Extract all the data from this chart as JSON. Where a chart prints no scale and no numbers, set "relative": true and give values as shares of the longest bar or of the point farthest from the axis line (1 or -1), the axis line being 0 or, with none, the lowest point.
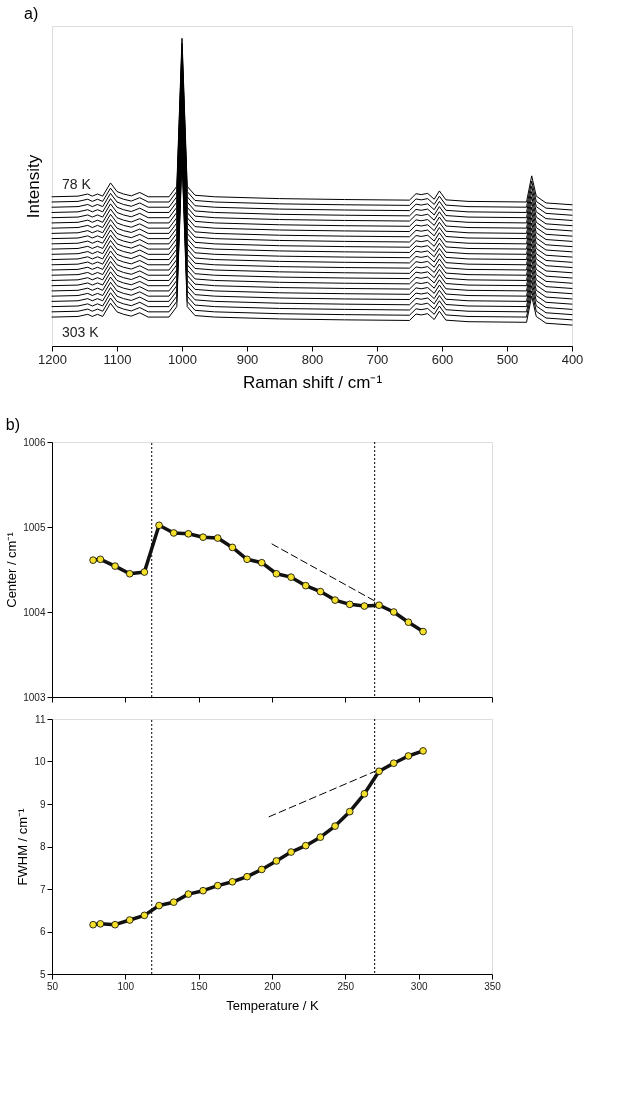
{
  "chart_data": [
    {
      "type": "line",
      "title": "a)",
      "xlabel": "Raman shift / cm⁻¹",
      "ylabel": "Intensity",
      "relative": true,
      "xlim": [
        1200,
        400
      ],
      "xticks": [
        1200,
        1100,
        1000,
        900,
        800,
        700,
        600,
        500,
        400
      ],
      "x": [
        1200,
        1160,
        1145,
        1138,
        1130,
        1122,
        1110,
        1100,
        1090,
        1078,
        1065,
        1052,
        1020,
        1008,
        1000,
        992,
        980,
        950,
        850,
        750,
        650,
        640,
        632,
        622,
        612,
        604,
        594,
        560,
        470,
        462,
        455,
        440,
        400
      ],
      "series": [
        {
          "name": "78 K",
          "color": "#000000",
          "values": [
            0.485,
            0.487,
            0.494,
            0.487,
            0.494,
            0.487,
            0.53,
            0.502,
            0.494,
            0.488,
            0.499,
            0.485,
            0.485,
            0.519,
            1.0,
            0.519,
            0.49,
            0.485,
            0.479,
            0.476,
            0.474,
            0.495,
            0.492,
            0.496,
            0.477,
            0.504,
            0.475,
            0.47,
            0.468,
            0.553,
            0.487,
            0.465,
            0.459
          ]
        },
        {
          "color": "#000000",
          "values": [
            0.468,
            0.47,
            0.477,
            0.47,
            0.477,
            0.47,
            0.513,
            0.485,
            0.477,
            0.471,
            0.482,
            0.468,
            0.468,
            0.502,
            0.983,
            0.502,
            0.473,
            0.468,
            0.462,
            0.459,
            0.457,
            0.478,
            0.475,
            0.479,
            0.46,
            0.487,
            0.458,
            0.453,
            0.451,
            0.536,
            0.47,
            0.448,
            0.442
          ]
        },
        {
          "color": "#000000",
          "values": [
            0.451,
            0.453,
            0.46,
            0.453,
            0.46,
            0.453,
            0.496,
            0.468,
            0.46,
            0.454,
            0.465,
            0.451,
            0.451,
            0.485,
            0.966,
            0.485,
            0.456,
            0.451,
            0.445,
            0.442,
            0.44,
            0.461,
            0.458,
            0.462,
            0.443,
            0.47,
            0.441,
            0.436,
            0.434,
            0.519,
            0.453,
            0.431,
            0.425
          ]
        },
        {
          "color": "#000000",
          "values": [
            0.434,
            0.436,
            0.443,
            0.436,
            0.443,
            0.436,
            0.479,
            0.451,
            0.443,
            0.437,
            0.448,
            0.434,
            0.434,
            0.468,
            0.949,
            0.468,
            0.439,
            0.434,
            0.428,
            0.425,
            0.423,
            0.444,
            0.441,
            0.445,
            0.426,
            0.453,
            0.424,
            0.419,
            0.417,
            0.502,
            0.436,
            0.414,
            0.408
          ]
        },
        {
          "color": "#000000",
          "values": [
            0.417,
            0.419,
            0.426,
            0.419,
            0.426,
            0.419,
            0.462,
            0.434,
            0.426,
            0.42,
            0.431,
            0.417,
            0.417,
            0.451,
            0.932,
            0.451,
            0.422,
            0.417,
            0.411,
            0.408,
            0.406,
            0.427,
            0.424,
            0.428,
            0.409,
            0.436,
            0.407,
            0.402,
            0.4,
            0.485,
            0.419,
            0.397,
            0.391
          ]
        },
        {
          "color": "#000000",
          "values": [
            0.4,
            0.402,
            0.409,
            0.402,
            0.409,
            0.402,
            0.445,
            0.417,
            0.409,
            0.403,
            0.414,
            0.4,
            0.4,
            0.434,
            0.915,
            0.434,
            0.405,
            0.4,
            0.394,
            0.391,
            0.389,
            0.41,
            0.407,
            0.411,
            0.392,
            0.419,
            0.39,
            0.385,
            0.383,
            0.468,
            0.402,
            0.38,
            0.374
          ]
        },
        {
          "color": "#000000",
          "values": [
            0.383,
            0.385,
            0.392,
            0.385,
            0.392,
            0.385,
            0.428,
            0.4,
            0.392,
            0.386,
            0.397,
            0.383,
            0.383,
            0.417,
            0.898,
            0.417,
            0.388,
            0.383,
            0.377,
            0.374,
            0.372,
            0.393,
            0.39,
            0.394,
            0.375,
            0.402,
            0.373,
            0.368,
            0.366,
            0.451,
            0.385,
            0.363,
            0.357
          ]
        },
        {
          "color": "#000000",
          "values": [
            0.366,
            0.368,
            0.375,
            0.368,
            0.375,
            0.368,
            0.411,
            0.383,
            0.375,
            0.369,
            0.38,
            0.366,
            0.366,
            0.4,
            0.881,
            0.4,
            0.371,
            0.366,
            0.36,
            0.357,
            0.355,
            0.376,
            0.373,
            0.377,
            0.358,
            0.385,
            0.356,
            0.351,
            0.349,
            0.434,
            0.368,
            0.346,
            0.34
          ]
        },
        {
          "color": "#000000",
          "values": [
            0.349,
            0.351,
            0.358,
            0.351,
            0.358,
            0.351,
            0.394,
            0.366,
            0.358,
            0.352,
            0.363,
            0.349,
            0.349,
            0.383,
            0.864,
            0.383,
            0.354,
            0.349,
            0.343,
            0.34,
            0.338,
            0.359,
            0.356,
            0.36,
            0.341,
            0.368,
            0.339,
            0.334,
            0.332,
            0.417,
            0.351,
            0.329,
            0.323
          ]
        },
        {
          "color": "#000000",
          "values": [
            0.332,
            0.334,
            0.341,
            0.334,
            0.341,
            0.334,
            0.377,
            0.349,
            0.341,
            0.335,
            0.346,
            0.332,
            0.332,
            0.366,
            0.847,
            0.366,
            0.337,
            0.332,
            0.326,
            0.323,
            0.321,
            0.342,
            0.339,
            0.343,
            0.324,
            0.351,
            0.322,
            0.317,
            0.315,
            0.4,
            0.334,
            0.312,
            0.306
          ]
        },
        {
          "color": "#000000",
          "values": [
            0.315,
            0.317,
            0.324,
            0.317,
            0.324,
            0.317,
            0.36,
            0.332,
            0.324,
            0.318,
            0.329,
            0.315,
            0.315,
            0.349,
            0.83,
            0.349,
            0.32,
            0.315,
            0.309,
            0.306,
            0.304,
            0.325,
            0.322,
            0.326,
            0.307,
            0.334,
            0.305,
            0.3,
            0.298,
            0.383,
            0.317,
            0.295,
            0.289
          ]
        },
        {
          "color": "#000000",
          "values": [
            0.298,
            0.3,
            0.307,
            0.3,
            0.307,
            0.3,
            0.343,
            0.315,
            0.307,
            0.301,
            0.312,
            0.298,
            0.298,
            0.332,
            0.813,
            0.332,
            0.303,
            0.298,
            0.292,
            0.289,
            0.287,
            0.308,
            0.305,
            0.309,
            0.29,
            0.317,
            0.288,
            0.283,
            0.281,
            0.366,
            0.3,
            0.278,
            0.272
          ]
        },
        {
          "color": "#000000",
          "values": [
            0.281,
            0.283,
            0.29,
            0.283,
            0.29,
            0.283,
            0.326,
            0.298,
            0.29,
            0.284,
            0.295,
            0.281,
            0.281,
            0.315,
            0.796,
            0.315,
            0.286,
            0.281,
            0.275,
            0.272,
            0.27,
            0.291,
            0.288,
            0.292,
            0.273,
            0.3,
            0.271,
            0.266,
            0.264,
            0.349,
            0.283,
            0.261,
            0.255
          ]
        },
        {
          "color": "#000000",
          "values": [
            0.264,
            0.266,
            0.273,
            0.266,
            0.273,
            0.266,
            0.309,
            0.281,
            0.273,
            0.267,
            0.278,
            0.264,
            0.264,
            0.298,
            0.779,
            0.298,
            0.269,
            0.264,
            0.258,
            0.255,
            0.253,
            0.274,
            0.271,
            0.275,
            0.256,
            0.283,
            0.254,
            0.249,
            0.247,
            0.332,
            0.266,
            0.244,
            0.238
          ]
        },
        {
          "color": "#000000",
          "values": [
            0.247,
            0.249,
            0.256,
            0.249,
            0.256,
            0.249,
            0.292,
            0.264,
            0.256,
            0.25,
            0.261,
            0.247,
            0.247,
            0.281,
            0.762,
            0.281,
            0.252,
            0.247,
            0.241,
            0.238,
            0.236,
            0.257,
            0.254,
            0.258,
            0.239,
            0.266,
            0.237,
            0.232,
            0.23,
            0.315,
            0.249,
            0.227,
            0.221
          ]
        },
        {
          "color": "#000000",
          "values": [
            0.23,
            0.232,
            0.239,
            0.232,
            0.239,
            0.232,
            0.275,
            0.247,
            0.239,
            0.233,
            0.244,
            0.23,
            0.23,
            0.264,
            0.745,
            0.264,
            0.235,
            0.23,
            0.224,
            0.221,
            0.219,
            0.24,
            0.237,
            0.241,
            0.222,
            0.249,
            0.22,
            0.215,
            0.213,
            0.298,
            0.232,
            0.21,
            0.204
          ]
        },
        {
          "color": "#000000",
          "values": [
            0.213,
            0.215,
            0.222,
            0.215,
            0.222,
            0.215,
            0.258,
            0.23,
            0.222,
            0.216,
            0.227,
            0.213,
            0.213,
            0.247,
            0.728,
            0.247,
            0.218,
            0.213,
            0.207,
            0.204,
            0.202,
            0.223,
            0.22,
            0.224,
            0.205,
            0.232,
            0.203,
            0.198,
            0.196,
            0.281,
            0.215,
            0.193,
            0.187
          ]
        },
        {
          "color": "#000000",
          "values": [
            0.196,
            0.198,
            0.205,
            0.198,
            0.205,
            0.198,
            0.241,
            0.213,
            0.205,
            0.199,
            0.21,
            0.196,
            0.196,
            0.23,
            0.711,
            0.23,
            0.201,
            0.196,
            0.19,
            0.187,
            0.185,
            0.206,
            0.203,
            0.207,
            0.188,
            0.215,
            0.186,
            0.181,
            0.179,
            0.264,
            0.198,
            0.176,
            0.17
          ]
        },
        {
          "color": "#000000",
          "values": [
            0.179,
            0.181,
            0.188,
            0.181,
            0.188,
            0.181,
            0.224,
            0.196,
            0.188,
            0.182,
            0.193,
            0.179,
            0.179,
            0.213,
            0.694,
            0.213,
            0.184,
            0.179,
            0.173,
            0.17,
            0.168,
            0.189,
            0.186,
            0.19,
            0.171,
            0.198,
            0.169,
            0.164,
            0.162,
            0.247,
            0.181,
            0.159,
            0.153
          ]
        },
        {
          "color": "#000000",
          "values": [
            0.162,
            0.164,
            0.171,
            0.164,
            0.171,
            0.164,
            0.207,
            0.179,
            0.171,
            0.165,
            0.176,
            0.162,
            0.162,
            0.196,
            0.677,
            0.196,
            0.167,
            0.162,
            0.156,
            0.153,
            0.151,
            0.172,
            0.169,
            0.173,
            0.154,
            0.181,
            0.152,
            0.147,
            0.145,
            0.23,
            0.164,
            0.142,
            0.136
          ]
        },
        {
          "color": "#000000",
          "values": [
            0.145,
            0.147,
            0.154,
            0.147,
            0.154,
            0.147,
            0.19,
            0.162,
            0.154,
            0.148,
            0.159,
            0.145,
            0.145,
            0.179,
            0.66,
            0.179,
            0.15,
            0.145,
            0.139,
            0.136,
            0.134,
            0.155,
            0.152,
            0.156,
            0.137,
            0.164,
            0.135,
            0.13,
            0.128,
            0.213,
            0.147,
            0.125,
            0.119
          ]
        },
        {
          "color": "#000000",
          "values": [
            0.128,
            0.13,
            0.137,
            0.13,
            0.137,
            0.13,
            0.173,
            0.145,
            0.137,
            0.131,
            0.142,
            0.128,
            0.128,
            0.162,
            0.643,
            0.162,
            0.133,
            0.128,
            0.122,
            0.119,
            0.117,
            0.138,
            0.135,
            0.139,
            0.12,
            0.147,
            0.118,
            0.113,
            0.111,
            0.196,
            0.13,
            0.108,
            0.102
          ]
        },
        {
          "color": "#000000",
          "values": [
            0.111,
            0.113,
            0.12,
            0.113,
            0.12,
            0.113,
            0.156,
            0.128,
            0.12,
            0.114,
            0.125,
            0.111,
            0.111,
            0.145,
            0.626,
            0.145,
            0.116,
            0.111,
            0.105,
            0.102,
            0.1,
            0.121,
            0.118,
            0.122,
            0.103,
            0.13,
            0.101,
            0.096,
            0.094,
            0.179,
            0.113,
            0.091,
            0.085
          ]
        },
        {
          "name": "303 K",
          "color": "#000000",
          "values": [
            0.094,
            0.096,
            0.103,
            0.096,
            0.103,
            0.096,
            0.139,
            0.111,
            0.103,
            0.097,
            0.108,
            0.094,
            0.094,
            0.128,
            0.609,
            0.128,
            0.099,
            0.094,
            0.088,
            0.085,
            0.083,
            0.104,
            0.101,
            0.105,
            0.086,
            0.113,
            0.084,
            0.079,
            0.077,
            0.162,
            0.096,
            0.074,
            0.068
          ]
        }
      ]
    },
    {
      "type": "line",
      "title": "b)",
      "ylabel": "Center / cm⁻¹",
      "tick_labels": "y",
      "xlim": [
        50,
        350
      ],
      "xticks": [
        50,
        100,
        150,
        200,
        250,
        300,
        350
      ],
      "ylim": [
        1003,
        1006
      ],
      "yticks": [
        1003,
        1004,
        1005,
        1006
      ],
      "x": [
        78,
        83,
        93,
        103,
        113,
        123,
        133,
        143,
        153,
        163,
        173,
        183,
        193,
        203,
        213,
        223,
        233,
        243,
        253,
        263,
        273,
        283,
        293,
        303
      ],
      "ref_lines": [
        {
          "axis": "x",
          "value": 118,
          "line_style": "dotted",
          "color": "#000000"
        },
        {
          "axis": "x",
          "value": 270,
          "line_style": "dotted",
          "color": "#000000"
        }
      ],
      "series": [
        {
          "color": "#f5e02c",
          "marker": "circle",
          "values": [
            1004.61,
            1004.62,
            1004.54,
            1004.45,
            1004.47,
            1005.02,
            1004.93,
            1004.92,
            1004.88,
            1004.87,
            1004.76,
            1004.62,
            1004.58,
            1004.45,
            1004.41,
            1004.31,
            1004.24,
            1004.14,
            1004.09,
            1004.07,
            1004.08,
            1004.0,
            1003.88,
            1003.77
          ]
        },
        {
          "color": "#000000",
          "marker": "none",
          "line_style": "dashed",
          "x": [
            200,
            270
          ],
          "values": [
            1004.8,
            1004.13
          ]
        }
      ]
    },
    {
      "type": "line",
      "xlabel": "Temperature / K",
      "ylabel": "FWHM / cm⁻¹",
      "xlim": [
        50,
        350
      ],
      "xticks": [
        50,
        100,
        150,
        200,
        250,
        300,
        350
      ],
      "ylim": [
        5,
        11
      ],
      "yticks": [
        5,
        6,
        7,
        8,
        9,
        10,
        11
      ],
      "x": [
        78,
        83,
        93,
        103,
        113,
        123,
        133,
        143,
        153,
        163,
        173,
        183,
        193,
        203,
        213,
        223,
        233,
        243,
        253,
        263,
        273,
        283,
        293,
        303
      ],
      "ref_lines": [
        {
          "axis": "x",
          "value": 118,
          "line_style": "dotted",
          "color": "#000000"
        },
        {
          "axis": "x",
          "value": 270,
          "line_style": "dotted",
          "color": "#000000"
        }
      ],
      "series": [
        {
          "color": "#f5e02c",
          "marker": "circle",
          "values": [
            6.16,
            6.18,
            6.16,
            6.27,
            6.38,
            6.61,
            6.69,
            6.88,
            6.96,
            7.08,
            7.17,
            7.29,
            7.46,
            7.66,
            7.87,
            8.02,
            8.22,
            8.48,
            8.82,
            9.24,
            9.77,
            9.96,
            10.13,
            10.25
          ]
        },
        {
          "color": "#000000",
          "marker": "none",
          "line_style": "dashed",
          "x": [
            198,
            271
          ],
          "values": [
            8.7,
            9.78
          ]
        }
      ]
    }
  ]
}
